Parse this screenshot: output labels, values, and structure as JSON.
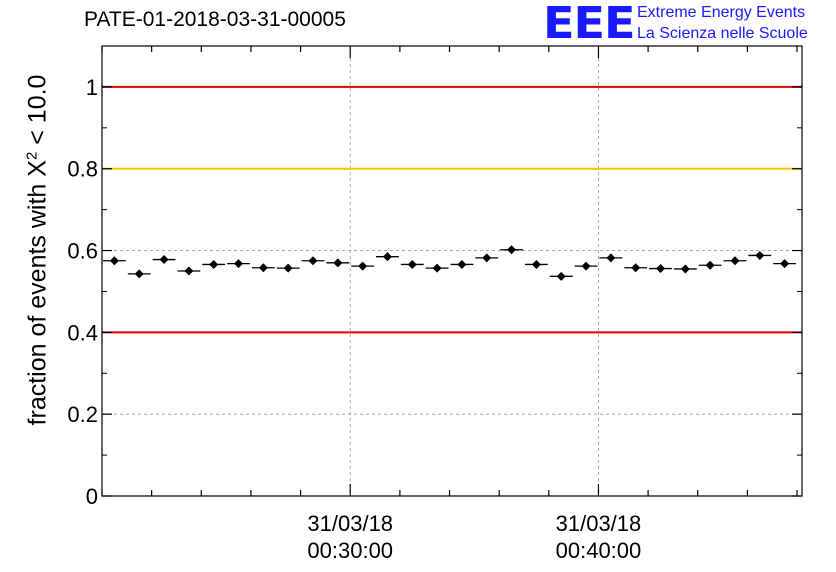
{
  "header": {
    "title": "PATE-01-2018-03-31-00005",
    "logo_text": "EEE",
    "logo_line1": "Extreme Energy Events",
    "logo_line2": "La Scienza nelle Scuole"
  },
  "chart_data": {
    "type": "scatter",
    "title": "PATE-01-2018-03-31-00005",
    "ylabel": "fraction of events with χ² < 10.0",
    "ylabel_parts": {
      "pre": "fraction of events with X",
      "sup": "2",
      "post": " < 10.0"
    },
    "xlabel": "",
    "ylim": [
      0,
      1.1
    ],
    "y_ticks": [
      0,
      0.2,
      0.4,
      0.6,
      0.8,
      1
    ],
    "y_tick_labels": [
      "0",
      "0.2",
      "0.4",
      "0.6",
      "0.8",
      "1"
    ],
    "x_time_range_minutes": [
      20,
      48.2
    ],
    "x_major_ticks": [
      {
        "minute": 30,
        "date": "31/03/18",
        "time": "00:30:00"
      },
      {
        "minute": 40,
        "date": "31/03/18",
        "time": "00:40:00"
      }
    ],
    "x_minor_tick_step_minutes": 2,
    "grid": true,
    "bin_width_minutes": 1,
    "reference_lines": [
      {
        "y": 1.0,
        "color": "#e00000"
      },
      {
        "y": 0.8,
        "color": "#ffc000"
      },
      {
        "y": 0.4,
        "color": "#e00000"
      }
    ],
    "series": [
      {
        "marker_color": "#000000",
        "x": [
          20.5,
          21.5,
          22.5,
          23.5,
          24.5,
          25.5,
          26.5,
          27.5,
          28.5,
          29.5,
          30.5,
          31.5,
          32.5,
          33.5,
          34.5,
          35.5,
          36.5,
          37.5,
          38.5,
          39.5,
          40.5,
          41.5,
          42.5,
          43.5,
          44.5,
          45.5,
          46.5,
          47.5
        ],
        "y": [
          0.575,
          0.543,
          0.578,
          0.55,
          0.566,
          0.568,
          0.558,
          0.557,
          0.575,
          0.57,
          0.562,
          0.585,
          0.566,
          0.557,
          0.566,
          0.582,
          0.602,
          0.566,
          0.537,
          0.562,
          0.582,
          0.558,
          0.556,
          0.555,
          0.564,
          0.575,
          0.588,
          0.568
        ],
        "y_err": [
          0.008,
          0.008,
          0.008,
          0.008,
          0.008,
          0.008,
          0.008,
          0.008,
          0.008,
          0.008,
          0.008,
          0.008,
          0.008,
          0.008,
          0.008,
          0.008,
          0.008,
          0.008,
          0.008,
          0.008,
          0.008,
          0.008,
          0.008,
          0.008,
          0.008,
          0.008,
          0.008,
          0.008
        ]
      }
    ]
  }
}
